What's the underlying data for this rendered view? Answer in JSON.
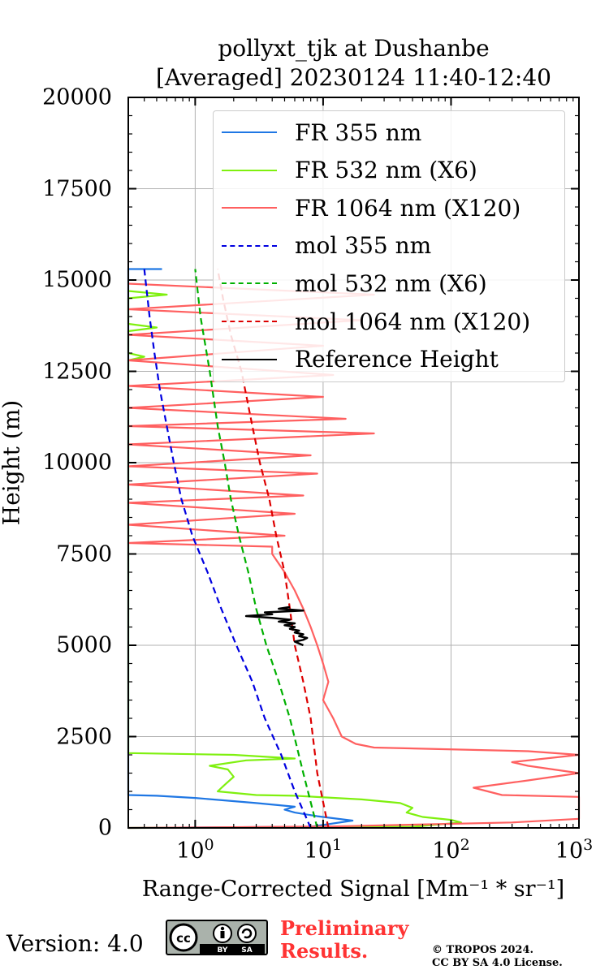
{
  "chart_data": {
    "type": "line",
    "title": "pollyxt_tjk at Dushanbe",
    "subtitle": "[Averaged] 20230124 11:40-12:40",
    "xlabel": "Range-Corrected Signal [Mm⁻¹ * sr⁻¹]",
    "ylabel": "Height (m)",
    "x_scale": "log",
    "xlim": [
      0.3,
      1000
    ],
    "ylim": [
      0,
      20000
    ],
    "x_ticks": [
      {
        "base": "10",
        "exp": "0",
        "value": 1
      },
      {
        "base": "10",
        "exp": "1",
        "value": 10
      },
      {
        "base": "10",
        "exp": "2",
        "value": 100
      },
      {
        "base": "10",
        "exp": "3",
        "value": 1000
      }
    ],
    "y_ticks": [
      "0",
      "2500",
      "5000",
      "7500",
      "10000",
      "12500",
      "15000",
      "17500",
      "20000"
    ],
    "grid": true,
    "legend_position": "top-right",
    "series": [
      {
        "name": "FR 355 nm",
        "color": "#1f77e4",
        "style": "solid",
        "points": [
          [
            0.3,
            0
          ],
          [
            8,
            30
          ],
          [
            17,
            200
          ],
          [
            9,
            320
          ],
          [
            6,
            420
          ],
          [
            5,
            500
          ],
          [
            6,
            580
          ],
          [
            3,
            680
          ],
          [
            1,
            820
          ],
          [
            0.5,
            880
          ],
          [
            0.3,
            900
          ],
          [
            0.3,
            15300
          ],
          [
            0.55,
            15300
          ]
        ]
      },
      {
        "name": "FR 532 nm (X6)",
        "color": "#7ff00f",
        "style": "solid",
        "points": [
          [
            0.3,
            0
          ],
          [
            50,
            30
          ],
          [
            120,
            150
          ],
          [
            100,
            220
          ],
          [
            60,
            300
          ],
          [
            45,
            420
          ],
          [
            50,
            550
          ],
          [
            40,
            680
          ],
          [
            20,
            780
          ],
          [
            6,
            880
          ],
          [
            3,
            900
          ],
          [
            1.5,
            1000
          ],
          [
            1.7,
            1180
          ],
          [
            2,
            1400
          ],
          [
            1.8,
            1600
          ],
          [
            1.3,
            1700
          ],
          [
            2.5,
            1850
          ],
          [
            6,
            1900
          ],
          [
            2,
            2000
          ],
          [
            0.3,
            2050
          ],
          [
            0.3,
            12800
          ],
          [
            0.4,
            12900
          ],
          [
            0.3,
            13000
          ],
          [
            0.3,
            13600
          ],
          [
            0.5,
            13700
          ],
          [
            0.3,
            13800
          ],
          [
            0.3,
            14500
          ],
          [
            0.6,
            14600
          ],
          [
            0.3,
            14700
          ]
        ]
      },
      {
        "name": "FR 1064 nm (X120)",
        "color": "#ff6060",
        "style": "solid",
        "points": [
          [
            0.3,
            0
          ],
          [
            12,
            40
          ],
          [
            300,
            150
          ],
          [
            1000,
            250
          ],
          [
            1000,
            850
          ],
          [
            250,
            900
          ],
          [
            150,
            1100
          ],
          [
            400,
            1300
          ],
          [
            1000,
            1500
          ],
          [
            400,
            1700
          ],
          [
            300,
            1800
          ],
          [
            1000,
            2000
          ],
          [
            400,
            2100
          ],
          [
            25,
            2200
          ],
          [
            18,
            2300
          ],
          [
            14,
            2500
          ],
          [
            12,
            3000
          ],
          [
            10,
            3500
          ],
          [
            11,
            4000
          ],
          [
            10,
            4500
          ],
          [
            9,
            5000
          ],
          [
            8,
            5500
          ],
          [
            7,
            6000
          ],
          [
            6,
            6500
          ],
          [
            5,
            7000
          ],
          [
            4,
            7500
          ],
          [
            4,
            7700
          ],
          [
            0.3,
            7800
          ],
          [
            5,
            8000
          ],
          [
            0.3,
            8300
          ],
          [
            6,
            8600
          ],
          [
            0.3,
            8900
          ],
          [
            7,
            9100
          ],
          [
            0.3,
            9400
          ],
          [
            9,
            9700
          ],
          [
            0.3,
            9900
          ],
          [
            8,
            10200
          ],
          [
            0.3,
            10500
          ],
          [
            25,
            10800
          ],
          [
            0.3,
            11000
          ],
          [
            15,
            11200
          ],
          [
            0.3,
            11500
          ],
          [
            10,
            11800
          ],
          [
            0.3,
            12100
          ],
          [
            12,
            12400
          ],
          [
            0.3,
            12800
          ],
          [
            10,
            13200
          ],
          [
            0.3,
            13500
          ],
          [
            20,
            13900
          ],
          [
            0.3,
            14200
          ],
          [
            25,
            14600
          ],
          [
            0.3,
            14900
          ]
        ]
      },
      {
        "name": "mol 355 nm",
        "color": "#0000e0",
        "style": "dashed",
        "points": [
          [
            8,
            0
          ],
          [
            6,
            1000
          ],
          [
            4.7,
            2000
          ],
          [
            3.5,
            3000
          ],
          [
            2.8,
            4000
          ],
          [
            2.1,
            5000
          ],
          [
            1.6,
            6000
          ],
          [
            1.25,
            7000
          ],
          [
            0.95,
            8000
          ],
          [
            0.78,
            9000
          ],
          [
            0.68,
            10000
          ],
          [
            0.6,
            11000
          ],
          [
            0.53,
            12000
          ],
          [
            0.48,
            13000
          ],
          [
            0.44,
            14000
          ],
          [
            0.4,
            15300
          ]
        ]
      },
      {
        "name": "mol 532 nm (X6)",
        "color": "#00b000",
        "style": "dashed",
        "points": [
          [
            9,
            0
          ],
          [
            7,
            1500
          ],
          [
            5.5,
            3000
          ],
          [
            4.5,
            4000
          ],
          [
            3.6,
            5000
          ],
          [
            3,
            6000
          ],
          [
            2.6,
            7000
          ],
          [
            2.2,
            8000
          ],
          [
            1.9,
            9000
          ],
          [
            1.7,
            10000
          ],
          [
            1.5,
            11000
          ],
          [
            1.3,
            12500
          ],
          [
            1.1,
            14000
          ],
          [
            1,
            15300
          ]
        ]
      },
      {
        "name": "mol 1064 nm (X120)",
        "color": "#dd0000",
        "style": "dashed",
        "points": [
          [
            11,
            0
          ],
          [
            9,
            1500
          ],
          [
            8,
            3000
          ],
          [
            7,
            4000
          ],
          [
            6,
            5000
          ],
          [
            5.5,
            6000
          ],
          [
            5,
            7000
          ],
          [
            4.3,
            8000
          ],
          [
            3.8,
            9000
          ],
          [
            3.2,
            10000
          ],
          [
            2.8,
            11000
          ],
          [
            2.3,
            12500
          ],
          [
            1.9,
            13500
          ],
          [
            1.65,
            14500
          ],
          [
            1.5,
            15300
          ]
        ]
      },
      {
        "name": "Reference Height",
        "color": "#000000",
        "style": "solid",
        "points": [
          [
            5.5,
            6050
          ],
          [
            4.5,
            6000
          ],
          [
            7,
            5950
          ],
          [
            3.5,
            5900
          ],
          [
            4,
            5850
          ],
          [
            2.5,
            5800
          ],
          [
            4,
            5750
          ],
          [
            5.5,
            5700
          ],
          [
            4.5,
            5650
          ],
          [
            6,
            5600
          ],
          [
            5,
            5550
          ],
          [
            6,
            5500
          ],
          [
            5.5,
            5450
          ],
          [
            6.5,
            5400
          ],
          [
            6,
            5350
          ],
          [
            7,
            5300
          ],
          [
            6.5,
            5250
          ],
          [
            7.5,
            5200
          ],
          [
            7,
            5150
          ],
          [
            6,
            5100
          ],
          [
            6.5,
            5050
          ],
          [
            7,
            5000
          ]
        ]
      }
    ]
  },
  "footer": {
    "version": "Version: 4.0",
    "license_badge": {
      "icons": [
        "cc-icon",
        "by-person-icon",
        "sa-icon"
      ],
      "by_text": "BY",
      "sa_text": "SA",
      "cc_text": "cc"
    },
    "preliminary_line1": "Preliminary",
    "preliminary_line2": "Results.",
    "copyright_line1": "© TROPOS 2024.",
    "copyright_line2": "CC BY SA 4.0 License."
  }
}
